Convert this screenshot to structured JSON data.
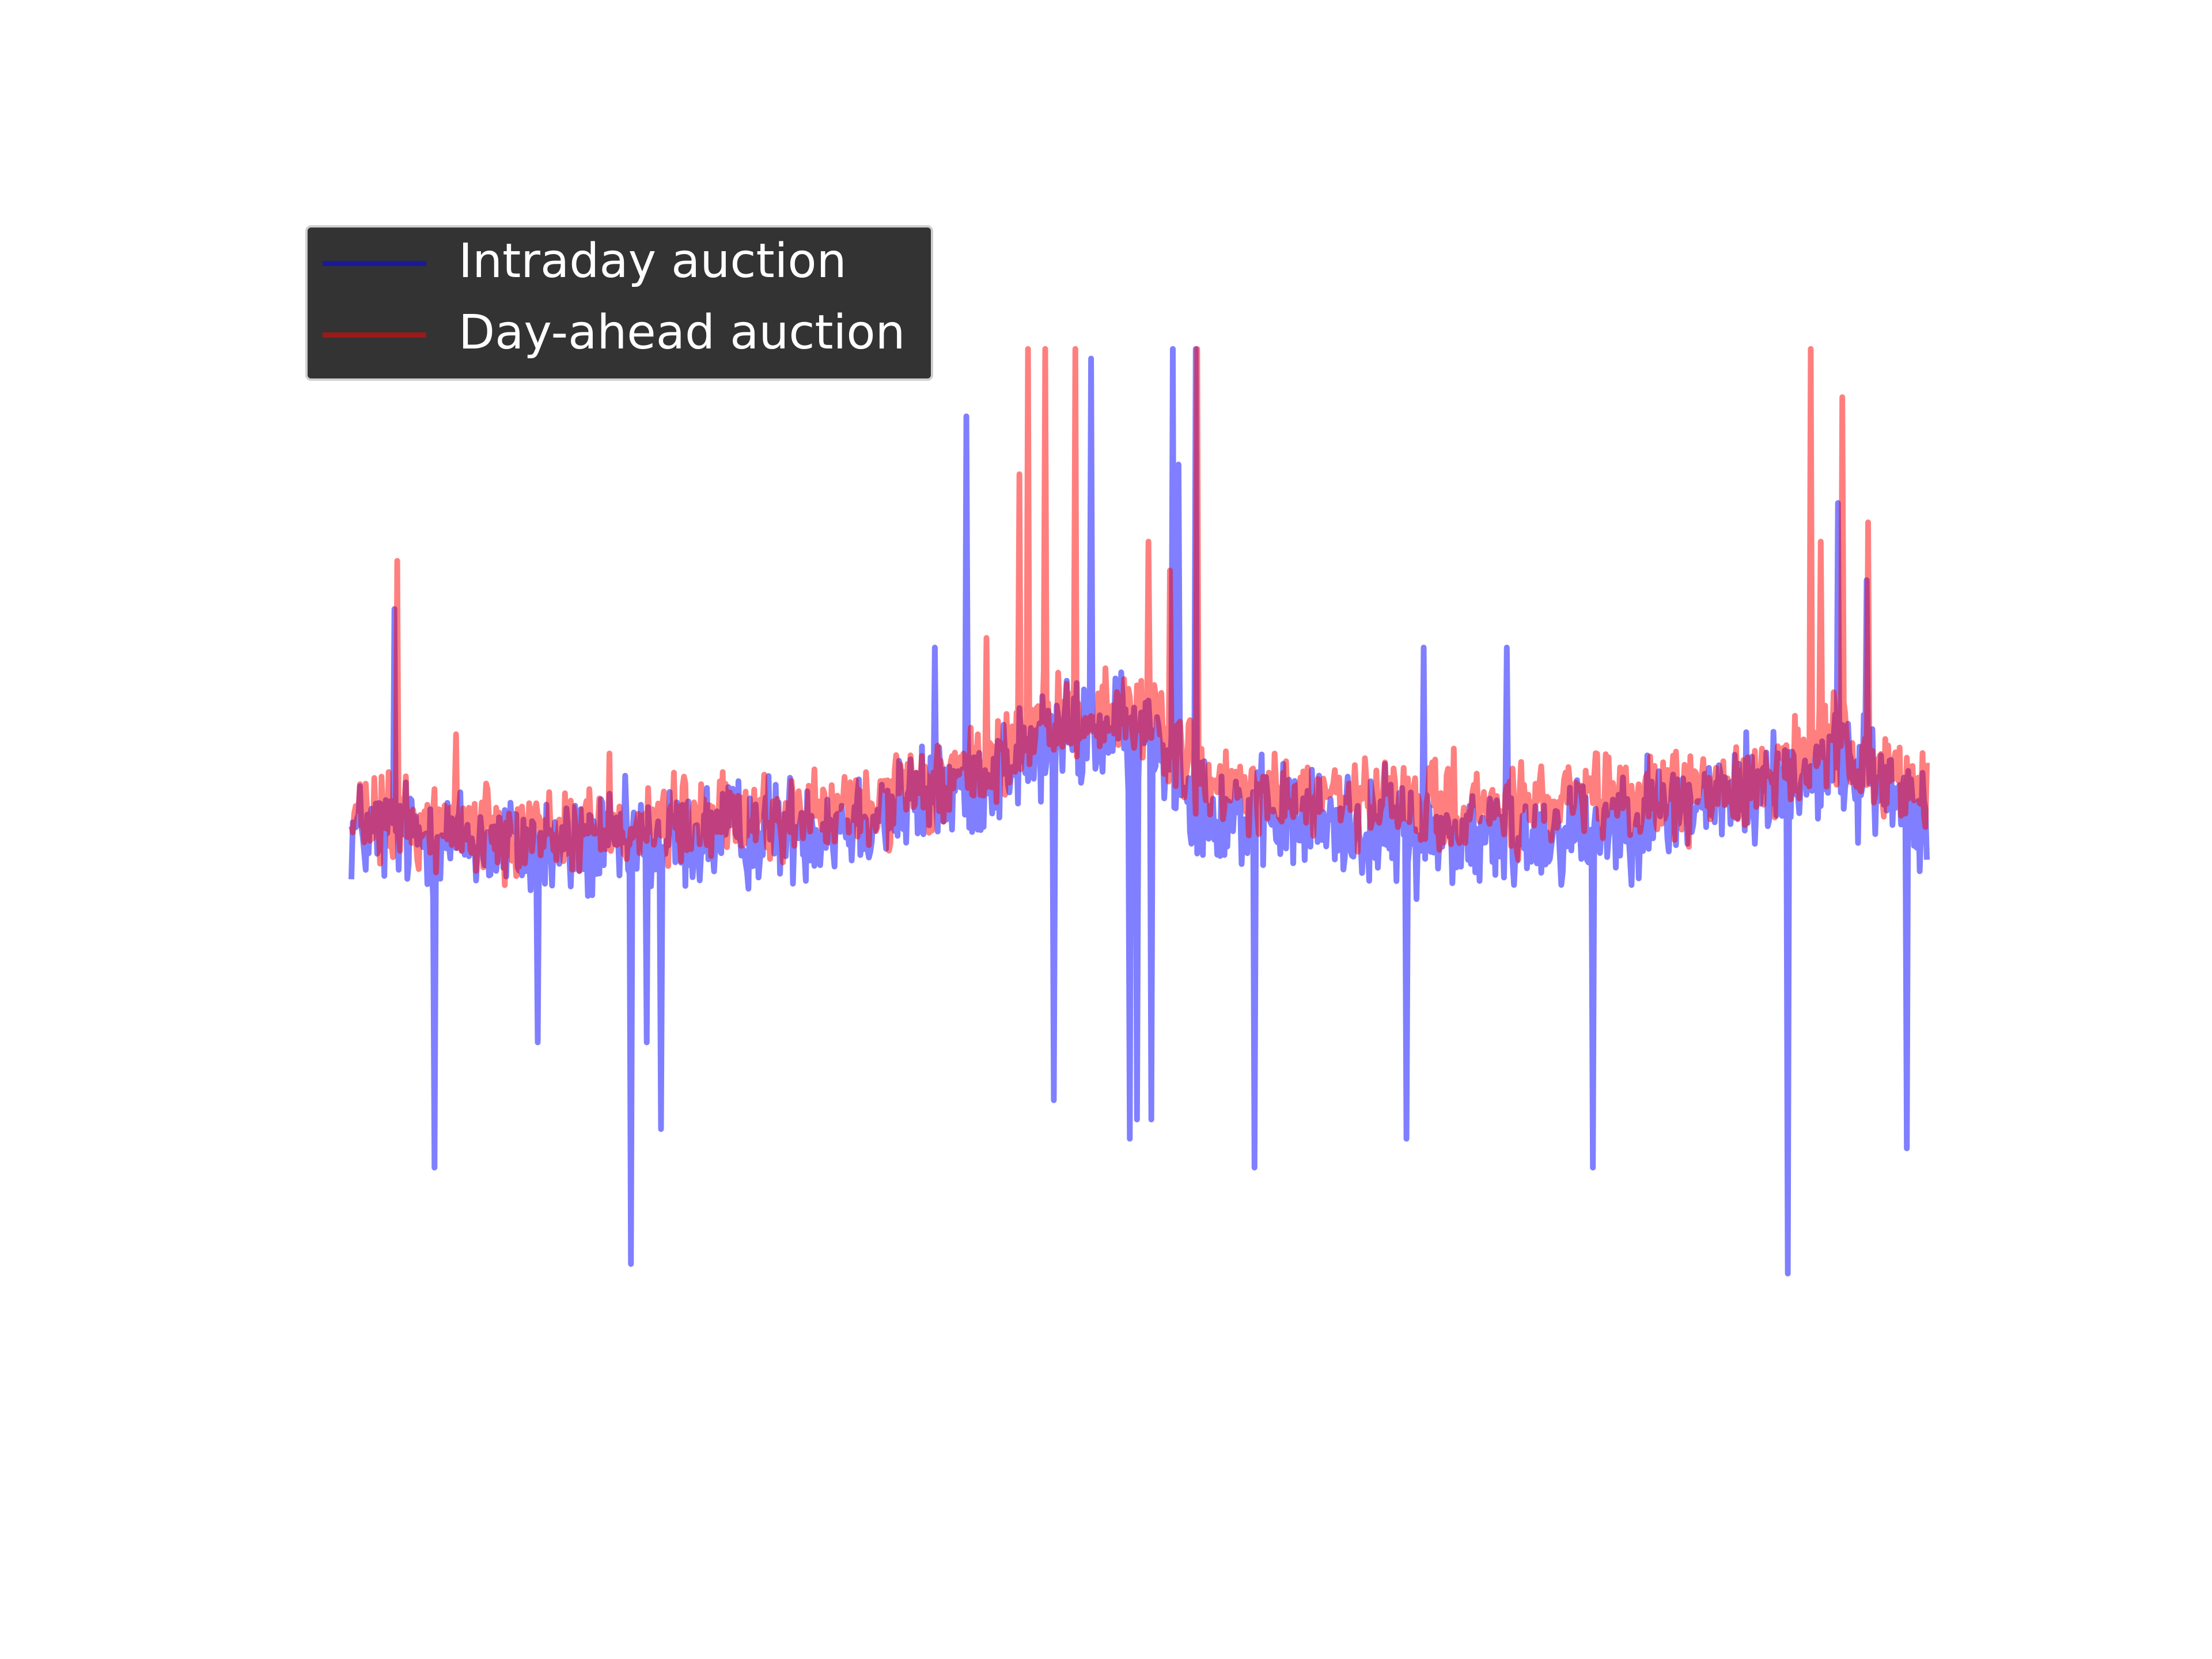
{
  "chart_data": {
    "type": "line",
    "title": "",
    "xlabel": "",
    "ylabel": "",
    "grid": false,
    "axes_visible": false,
    "legend_position": "top-left",
    "ylim": [
      -6,
      6.5
    ],
    "x_count": 1100,
    "series": [
      {
        "name": "Intraday auction",
        "color": "#0000ff",
        "legend_color": "#1a1a99",
        "opacity": 0.5,
        "profile": [
          {
            "x": 0,
            "y": 0.0
          },
          {
            "x": 150,
            "y": -0.2
          },
          {
            "x": 350,
            "y": 0.1
          },
          {
            "x": 420,
            "y": 0.4
          },
          {
            "x": 500,
            "y": 1.0
          },
          {
            "x": 560,
            "y": 1.0
          },
          {
            "x": 600,
            "y": 0.2
          },
          {
            "x": 800,
            "y": -0.1
          },
          {
            "x": 950,
            "y": 0.3
          },
          {
            "x": 1040,
            "y": 0.7
          },
          {
            "x": 1100,
            "y": 0.2
          }
        ],
        "spikes": [
          {
            "x": 30,
            "y": 2.3
          },
          {
            "x": 58,
            "y": -3.5
          },
          {
            "x": 130,
            "y": -2.2
          },
          {
            "x": 195,
            "y": 2.0
          },
          {
            "x": 195,
            "y": -4.5
          },
          {
            "x": 206,
            "y": -2.2
          },
          {
            "x": 216,
            "y": -3.1
          },
          {
            "x": 407,
            "y": 1.9
          },
          {
            "x": 429,
            "y": 4.3
          },
          {
            "x": 490,
            "y": -2.8
          },
          {
            "x": 516,
            "y": 4.9
          },
          {
            "x": 543,
            "y": -3.2
          },
          {
            "x": 548,
            "y": -3.0
          },
          {
            "x": 558,
            "y": -3.0
          },
          {
            "x": 573,
            "y": 5.0
          },
          {
            "x": 577,
            "y": 3.8
          },
          {
            "x": 589,
            "y": 5.0
          },
          {
            "x": 630,
            "y": -3.5
          },
          {
            "x": 736,
            "y": -3.2
          },
          {
            "x": 748,
            "y": 1.9
          },
          {
            "x": 806,
            "y": 1.9
          },
          {
            "x": 866,
            "y": -3.5
          },
          {
            "x": 1002,
            "y": 5.0
          },
          {
            "x": 1002,
            "y": -4.6
          },
          {
            "x": 1037,
            "y": 3.4
          },
          {
            "x": 1057,
            "y": 2.6
          },
          {
            "x": 1085,
            "y": -3.3
          }
        ]
      },
      {
        "name": "Day-ahead auction",
        "color": "#ff0000",
        "legend_color": "#991a1a",
        "opacity": 0.5,
        "profile": [
          {
            "x": 0,
            "y": 0.1
          },
          {
            "x": 150,
            "y": 0.0
          },
          {
            "x": 350,
            "y": 0.2
          },
          {
            "x": 420,
            "y": 0.5
          },
          {
            "x": 500,
            "y": 1.2
          },
          {
            "x": 560,
            "y": 1.2
          },
          {
            "x": 600,
            "y": 0.4
          },
          {
            "x": 800,
            "y": 0.2
          },
          {
            "x": 950,
            "y": 0.4
          },
          {
            "x": 1040,
            "y": 0.9
          },
          {
            "x": 1100,
            "y": 0.3
          }
        ],
        "spikes": [
          {
            "x": 32,
            "y": 2.8
          },
          {
            "x": 73,
            "y": 1.0
          },
          {
            "x": 180,
            "y": 0.8
          },
          {
            "x": 443,
            "y": 2.0
          },
          {
            "x": 466,
            "y": 3.7
          },
          {
            "x": 472,
            "y": 5.0
          },
          {
            "x": 484,
            "y": 5.0
          },
          {
            "x": 505,
            "y": 5.0
          },
          {
            "x": 556,
            "y": 3.0
          },
          {
            "x": 571,
            "y": 2.7
          },
          {
            "x": 590,
            "y": 5.0
          },
          {
            "x": 1018,
            "y": 5.0
          },
          {
            "x": 1025,
            "y": 3.0
          },
          {
            "x": 1040,
            "y": 4.5
          },
          {
            "x": 1058,
            "y": 3.2
          }
        ]
      }
    ]
  }
}
